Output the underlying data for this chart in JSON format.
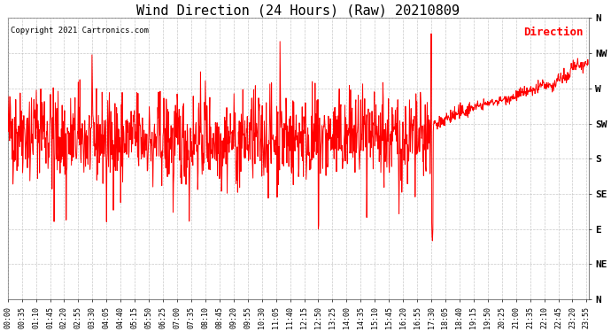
{
  "title": "Wind Direction (24 Hours) (Raw) 20210809",
  "copyright": "Copyright 2021 Cartronics.com",
  "legend_label": "Direction",
  "line_color": "red",
  "background_color": "white",
  "grid_color": "#bbbbbb",
  "title_fontsize": 11,
  "ytick_labels": [
    "N",
    "NE",
    "E",
    "SE",
    "S",
    "SW",
    "W",
    "NW",
    "N"
  ],
  "ytick_values": [
    0,
    45,
    90,
    135,
    180,
    225,
    270,
    315,
    360
  ],
  "ylim": [
    0,
    360
  ],
  "xlim_minutes": [
    0,
    1440
  ],
  "xtick_interval_minutes": 35,
  "xlabel_fontsize": 6,
  "ylabel_fontsize": 8,
  "random_seed": 42,
  "figsize": [
    6.9,
    3.75
  ],
  "dpi": 100
}
